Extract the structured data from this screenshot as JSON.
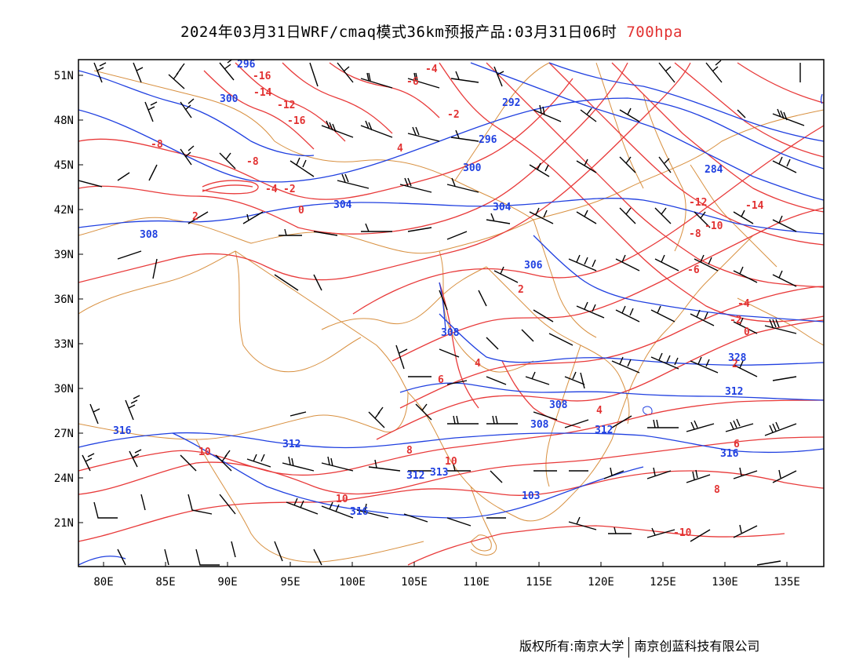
{
  "title": {
    "main": "2024年03月31日WRF/cmaq模式36km预报产品:03月31日06时",
    "level": "700hpa",
    "level_color": "#e23232"
  },
  "axes": {
    "lon_labels": [
      "80E",
      "85E",
      "90E",
      "95E",
      "100E",
      "105E",
      "110E",
      "115E",
      "120E",
      "125E",
      "130E",
      "135E"
    ],
    "lat_labels": [
      "51N",
      "48N",
      "45N",
      "42N",
      "39N",
      "36N",
      "33N",
      "30N",
      "27N",
      "24N",
      "21N"
    ],
    "lon_range": [
      78,
      138
    ],
    "lat_range": [
      18,
      52
    ]
  },
  "legend_colors": {
    "height_contour": "#2040e0",
    "temperature_contour": "#e83a3a",
    "boundary": "#d89040",
    "wind_barb": "#000000"
  },
  "height_labels": [
    "296",
    "300",
    "292",
    "296",
    "300",
    "284",
    "304",
    "304",
    "308",
    "306",
    "308",
    "308",
    "312",
    "316",
    "312",
    "312",
    "308",
    "312",
    "313",
    "316",
    "103",
    "316",
    "328"
  ],
  "temperature_labels": [
    "-16",
    "-14",
    "-12",
    "-16",
    "-8",
    "-8",
    "-6",
    "-4",
    "-2",
    "0",
    "2",
    "4",
    "-4",
    "-2",
    "2",
    "4",
    "6",
    "8",
    "10",
    "10",
    "10",
    "-12",
    "-14",
    "-8",
    "-10",
    "-6",
    "-4",
    "-2",
    "0",
    "2",
    "4",
    "6",
    "8",
    "-10"
  ],
  "footer": {
    "left": "版权所有:南京大学",
    "right": "南京创蓝科技有限公司"
  }
}
